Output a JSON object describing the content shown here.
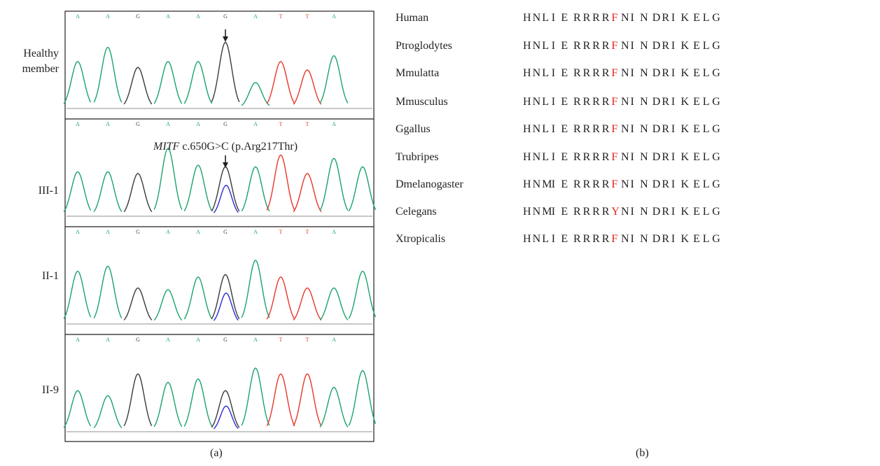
{
  "panel_a": {
    "caption": "(a)",
    "annotation_prefix": "MITF",
    "annotation_suffix": " c.650G>C (p.Arg217Thr)",
    "colors": {
      "A": "#1aa36b",
      "G": "#3a3a3a",
      "T": "#e8362a",
      "C": "#2b2bd0"
    },
    "tracks": [
      {
        "label": "Healthy member",
        "bases": [
          "A",
          "A",
          "G",
          "A",
          "A",
          "G",
          "A",
          "T",
          "T",
          "A"
        ],
        "heterozygous_index": null,
        "arrow": true
      },
      {
        "label": "III-1",
        "bases": [
          "A",
          "A",
          "G",
          "A",
          "A",
          "G",
          "A",
          "T",
          "T",
          "A"
        ],
        "heterozygous_index": 5,
        "arrow": true
      },
      {
        "label": "II-1",
        "bases": [
          "A",
          "A",
          "G",
          "A",
          "A",
          "G",
          "A",
          "T",
          "T",
          "A"
        ],
        "heterozygous_index": 5,
        "arrow": false
      },
      {
        "label": "II-9",
        "bases": [
          "A",
          "A",
          "G",
          "A",
          "A",
          "G",
          "A",
          "T",
          "T",
          "A"
        ],
        "heterozygous_index": 5,
        "arrow": false
      }
    ]
  },
  "panel_b": {
    "caption": "(b)",
    "highlight_color": "#e2231a",
    "highlight_index": 9,
    "rows": [
      {
        "species": "Human",
        "sequence": "HNLIERRRRFNINDRIKELG"
      },
      {
        "species": "Ptroglodytes",
        "sequence": "HNLIERRRRFNINDRIKELG"
      },
      {
        "species": "Mmulatta",
        "sequence": "HNLIERRRRFNINDRIKELG"
      },
      {
        "species": "Mmusculus",
        "sequence": "HNLIERRRRFNINDRIKELG"
      },
      {
        "species": "Ggallus",
        "sequence": "HNLIERRRRFNINDRIKELG"
      },
      {
        "species": "Trubripes",
        "sequence": "HNLIERRRRFNINDRIKELG"
      },
      {
        "species": "Dmelanogaster",
        "sequence": "HNMIERRRRFNINDRIKELG"
      },
      {
        "species": "Celegans",
        "sequence": "HNMIERRRRYNINDRIKELG"
      },
      {
        "species": "Xtropicalis",
        "sequence": "HNLIERRRRFNINDRIKELG"
      }
    ]
  }
}
